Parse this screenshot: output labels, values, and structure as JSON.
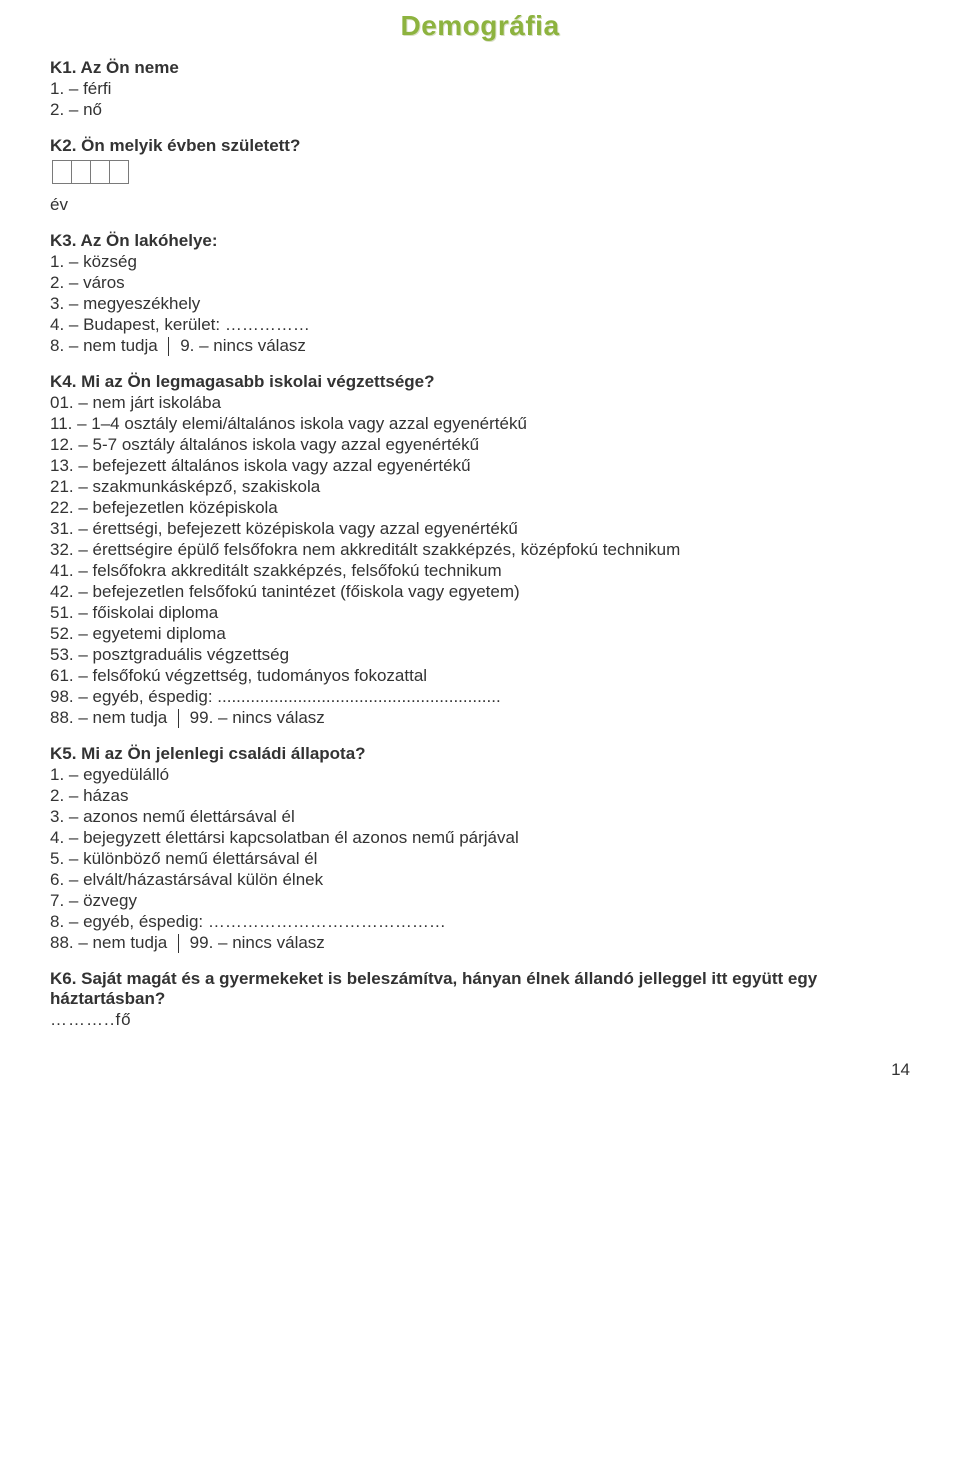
{
  "title": "Demográfia",
  "pagenum": "14",
  "q1": {
    "heading": "K1. Az Ön neme",
    "opt1": "1. – férfi",
    "opt2": "2. – nő"
  },
  "q2": {
    "heading": "K2. Ön melyik évben született?",
    "ev": "év"
  },
  "q3": {
    "heading": "K3. Az Ön lakóhelye:",
    "opt1": "1. – község",
    "opt2": "2. – város",
    "opt3": "3. – megyeszékhely",
    "opt4": "4. – Budapest, kerület: ……………",
    "opt8a": "8. – nem tudja",
    "opt9": "9. – nincs válasz"
  },
  "q4": {
    "heading": "K4. Mi az Ön legmagasabb iskolai végzettsége?",
    "l01": "01. – nem járt iskolába",
    "l11": "11. – 1–4 osztály elemi/általános iskola vagy azzal egyenértékű",
    "l12": "12. – 5-7 osztály általános iskola vagy azzal egyenértékű",
    "l13": "13. – befejezett általános iskola vagy azzal egyenértékű",
    "l21": "21. – szakmunkásképző, szakiskola",
    "l22": "22. – befejezetlen középiskola",
    "l31": "31. – érettségi, befejezett középiskola vagy azzal egyenértékű",
    "l32": "32. – érettségire épülő felsőfokra nem akkreditált szakképzés, középfokú technikum",
    "l41": "41. – felsőfokra akkreditált szakképzés, felsőfokú technikum",
    "l42": "42. – befejezetlen felsőfokú tanintézet (főiskola vagy egyetem)",
    "l51": "51. – főiskolai diploma",
    "l52": "52. – egyetemi diploma",
    "l53": "53. – posztgraduális végzettség",
    "l61": "61. – felsőfokú végzettség, tudományos fokozattal",
    "l98": "98. – egyéb, éspedig: ............................................................",
    "l88a": "88. – nem tudja",
    "l99": "99. – nincs válasz"
  },
  "q5": {
    "heading": "K5. Mi az Ön jelenlegi családi állapota?",
    "o1": "1. – egyedülálló",
    "o2": "2. – házas",
    "o3": "3. – azonos nemű élettársával él",
    "o4": "4. – bejegyzett élettársi kapcsolatban él azonos nemű párjával",
    "o5": "5. – különböző nemű élettársával él",
    "o6": "6. – elvált/házastársával külön élnek",
    "o7": "7. – özvegy",
    "o8": "8. – egyéb, éspedig: ……………………………………",
    "o88a": "88. – nem tudja",
    "o99": "99. – nincs válasz"
  },
  "q6": {
    "heading": "K6. Saját magát és a gyermekeket is beleszámítva, hányan élnek állandó jelleggel itt együtt egy háztartásban?",
    "ans": "………..fő"
  }
}
